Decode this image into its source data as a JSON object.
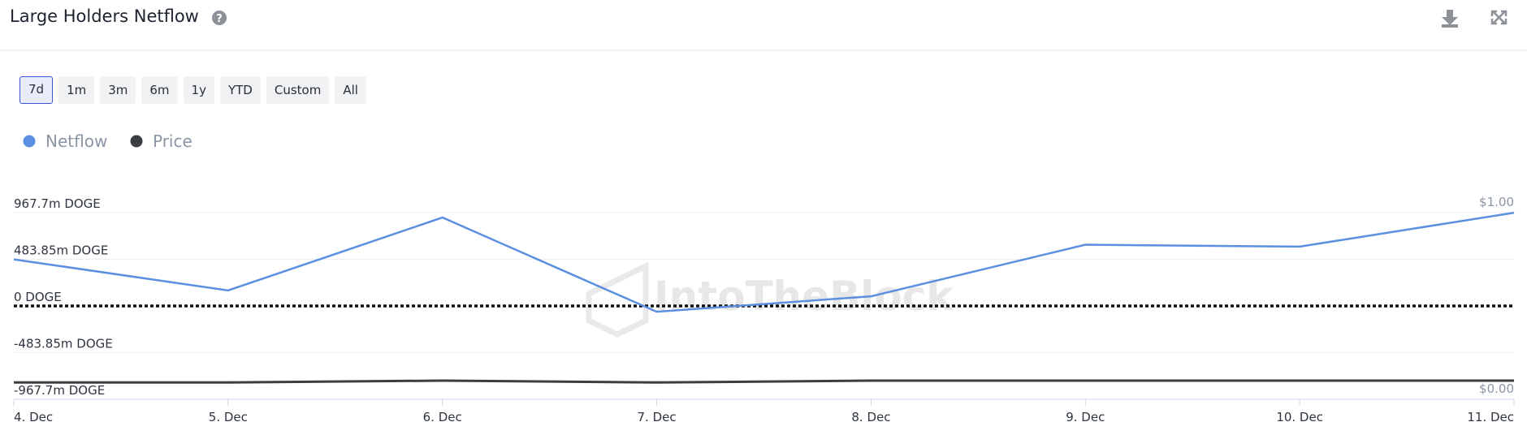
{
  "title": "Large Holders Netflow",
  "range_buttons": [
    "7d",
    "1m",
    "3m",
    "6m",
    "1y",
    "YTD",
    "Custom",
    "All"
  ],
  "selected_range": "7d",
  "watermark": "IntoTheBlock",
  "chart_data": {
    "type": "line",
    "categories": [
      "4. Dec",
      "5. Dec",
      "6. Dec",
      "7. Dec",
      "8. Dec",
      "9. Dec",
      "10. Dec",
      "11. Dec"
    ],
    "series": [
      {
        "name": "Netflow",
        "color": "#5b8fe0",
        "values": [
          483,
          161,
          917,
          -60,
          100,
          635,
          615,
          967
        ]
      },
      {
        "name": "Price",
        "color": "#3a3d42",
        "axis": "y2",
        "values": [
          0.09,
          0.09,
          0.1,
          0.09,
          0.1,
          0.1,
          0.1,
          0.1
        ]
      }
    ],
    "ylim": [
      -967.7,
      967.7
    ],
    "yticks": [
      {
        "value": 967.7,
        "label": "967.7m DOGE"
      },
      {
        "value": 483.85,
        "label": "483.85m DOGE"
      },
      {
        "value": 0,
        "label": "0 DOGE"
      },
      {
        "value": -483.85,
        "label": "-483.85m DOGE"
      },
      {
        "value": -967.7,
        "label": "-967.7m DOGE"
      }
    ],
    "y2lim": [
      0,
      1
    ],
    "y2ticks": [
      {
        "value": 1,
        "label": "$1.00"
      },
      {
        "value": 0,
        "label": "$0.00"
      }
    ],
    "grid": true,
    "zero_line_style": "dotted"
  }
}
